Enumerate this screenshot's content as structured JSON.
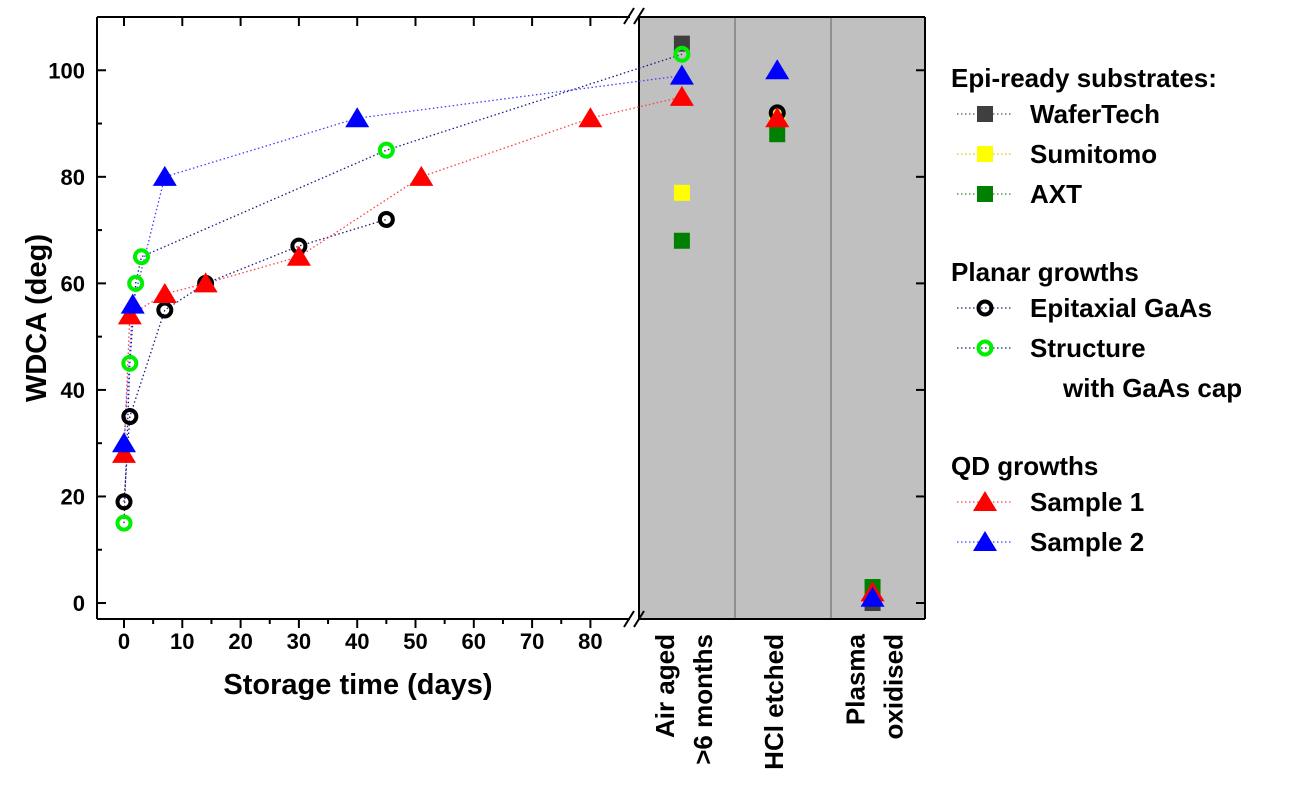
{
  "chart_data": {
    "type": "scatter",
    "ylabel": "WDCA (deg)",
    "xlabel": "Storage time (days)",
    "ylim": [
      -3,
      110
    ],
    "yticks": [
      0,
      20,
      40,
      60,
      80,
      100
    ],
    "ytick_labels": [
      "0",
      "20",
      "40",
      "60",
      "80",
      "100"
    ],
    "xlim": [
      -5,
      87
    ],
    "xticks": [
      0,
      10,
      20,
      30,
      40,
      50,
      60,
      70,
      80
    ],
    "xtick_labels": [
      "0",
      "10",
      "20",
      "30",
      "40",
      "50",
      "60",
      "70",
      "80"
    ],
    "categories": [
      "Air aged\n>6 months",
      "HCl etched",
      "Plasma\noxidised"
    ],
    "legend": {
      "placement": "right",
      "groups": [
        {
          "title": "Epi-ready substrates:",
          "entries": [
            "WaferTech",
            "Sumitomo",
            "AXT"
          ]
        },
        {
          "title": "Planar growths",
          "entries": [
            "Epitaxial GaAs",
            "Structure",
            "with GaAs cap"
          ]
        },
        {
          "title": "QD growths",
          "entries": [
            "Sample 1",
            "Sample 2"
          ]
        }
      ]
    },
    "series": [
      {
        "key": "wafertech",
        "name": "WaferTech",
        "marker": "square",
        "color": "#3f3f3f",
        "filled": true,
        "time_points": [],
        "category_values": [
          105,
          null,
          0
        ]
      },
      {
        "key": "sumitomo",
        "name": "Sumitomo",
        "marker": "square",
        "color": "#ffff00",
        "filled": true,
        "time_points": [],
        "category_values": [
          77,
          91,
          2
        ]
      },
      {
        "key": "axt",
        "name": "AXT",
        "marker": "square",
        "color": "#008000",
        "filled": true,
        "time_points": [],
        "category_values": [
          68,
          88,
          3
        ]
      },
      {
        "key": "epi_gaas",
        "name": "Epitaxial GaAs",
        "marker": "circle",
        "color": "#000000",
        "filled": false,
        "time_points": [
          [
            0,
            19
          ],
          [
            1,
            35
          ],
          [
            7,
            55
          ],
          [
            14,
            60
          ],
          [
            30,
            67
          ],
          [
            45,
            72
          ]
        ],
        "category_values": [
          null,
          92,
          null
        ]
      },
      {
        "key": "structure",
        "name": "Structure with GaAs cap",
        "marker": "circle",
        "color": "#00ee00",
        "filled": false,
        "time_points": [
          [
            0,
            15
          ],
          [
            1,
            45
          ],
          [
            2,
            60
          ],
          [
            3,
            65
          ],
          [
            45,
            85
          ]
        ],
        "category_values": [
          103,
          null,
          null
        ]
      },
      {
        "key": "sample1",
        "name": "Sample 1",
        "marker": "triangle",
        "color": "#ff0000",
        "filled": true,
        "time_points": [
          [
            0,
            28
          ],
          [
            1,
            54
          ],
          [
            7,
            58
          ],
          [
            14,
            60
          ],
          [
            30,
            65
          ],
          [
            51,
            80
          ],
          [
            80,
            91
          ]
        ],
        "category_values": [
          95,
          91,
          2
        ]
      },
      {
        "key": "sample2",
        "name": "Sample 2",
        "marker": "triangle",
        "color": "#0000ff",
        "filled": true,
        "time_points": [
          [
            0,
            30
          ],
          [
            1.5,
            56
          ],
          [
            7,
            80
          ],
          [
            40,
            91
          ]
        ],
        "category_values": [
          99,
          100,
          1
        ]
      }
    ],
    "connector_colors": {
      "wafertech": "#555555",
      "sumitomo": "#d8c800",
      "axt": "#2e8b2e",
      "epi_gaas": "#1a1a80",
      "structure": "#1a1a80",
      "sample1": "#ff4040",
      "sample2": "#4040ff"
    }
  }
}
